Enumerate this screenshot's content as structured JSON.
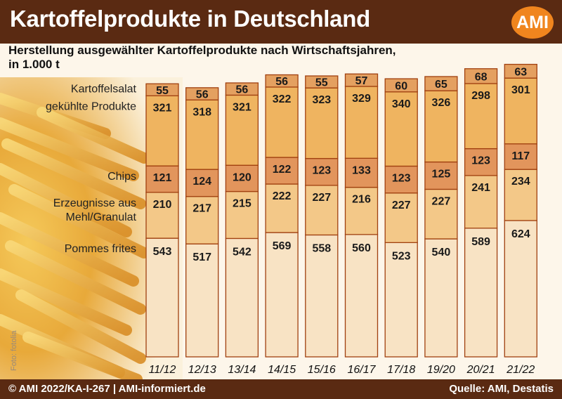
{
  "title": "Kartoffelprodukte in Deutschland",
  "logo": "AMI",
  "subtitle_line1": "Herstellung ausgewählter Kartoffelprodukte nach Wirtschaftsjahren,",
  "subtitle_line2": "in 1.000 t",
  "photo_credit": "Foto: fotolia",
  "footer_left": "© AMI 2022/KA-I-267 | AMI-informiert.de",
  "footer_right": "Quelle: AMI, Destatis",
  "colors": {
    "pommes": "#f8e3c4",
    "mehl": "#f3c888",
    "chips": "#e2955c",
    "gekuehlt": "#efb460",
    "salat": "#e4a060",
    "border": "#a04010"
  },
  "chart_data": {
    "type": "bar",
    "stacked": true,
    "categories": [
      "11/12",
      "12/13",
      "13/14",
      "14/15",
      "15/16",
      "16/17",
      "17/18",
      "19/20",
      "20/21",
      "21/22"
    ],
    "series": [
      {
        "name": "Pommes frites",
        "values": [
          543,
          517,
          542,
          569,
          558,
          560,
          523,
          540,
          589,
          624
        ]
      },
      {
        "name": "Erzeugnisse aus Mehl/Granulat",
        "values": [
          210,
          217,
          215,
          222,
          227,
          216,
          227,
          227,
          241,
          234
        ]
      },
      {
        "name": "Chips",
        "values": [
          121,
          124,
          120,
          122,
          123,
          133,
          123,
          125,
          123,
          117
        ]
      },
      {
        "name": "gekühlte Produkte",
        "values": [
          321,
          318,
          321,
          322,
          323,
          329,
          340,
          326,
          298,
          301
        ]
      },
      {
        "name": "Kartoffelsalat",
        "values": [
          55,
          56,
          56,
          56,
          55,
          57,
          60,
          65,
          68,
          63
        ]
      }
    ],
    "category_labels": [
      {
        "lines": [
          "Pommes frites"
        ]
      },
      {
        "lines": [
          "Erzeugnisse aus",
          "Mehl/Granulat"
        ]
      },
      {
        "lines": [
          "Chips"
        ]
      },
      {
        "lines": [
          "gekühlte Produkte"
        ]
      },
      {
        "lines": [
          "Kartoffelsalat"
        ]
      }
    ]
  }
}
